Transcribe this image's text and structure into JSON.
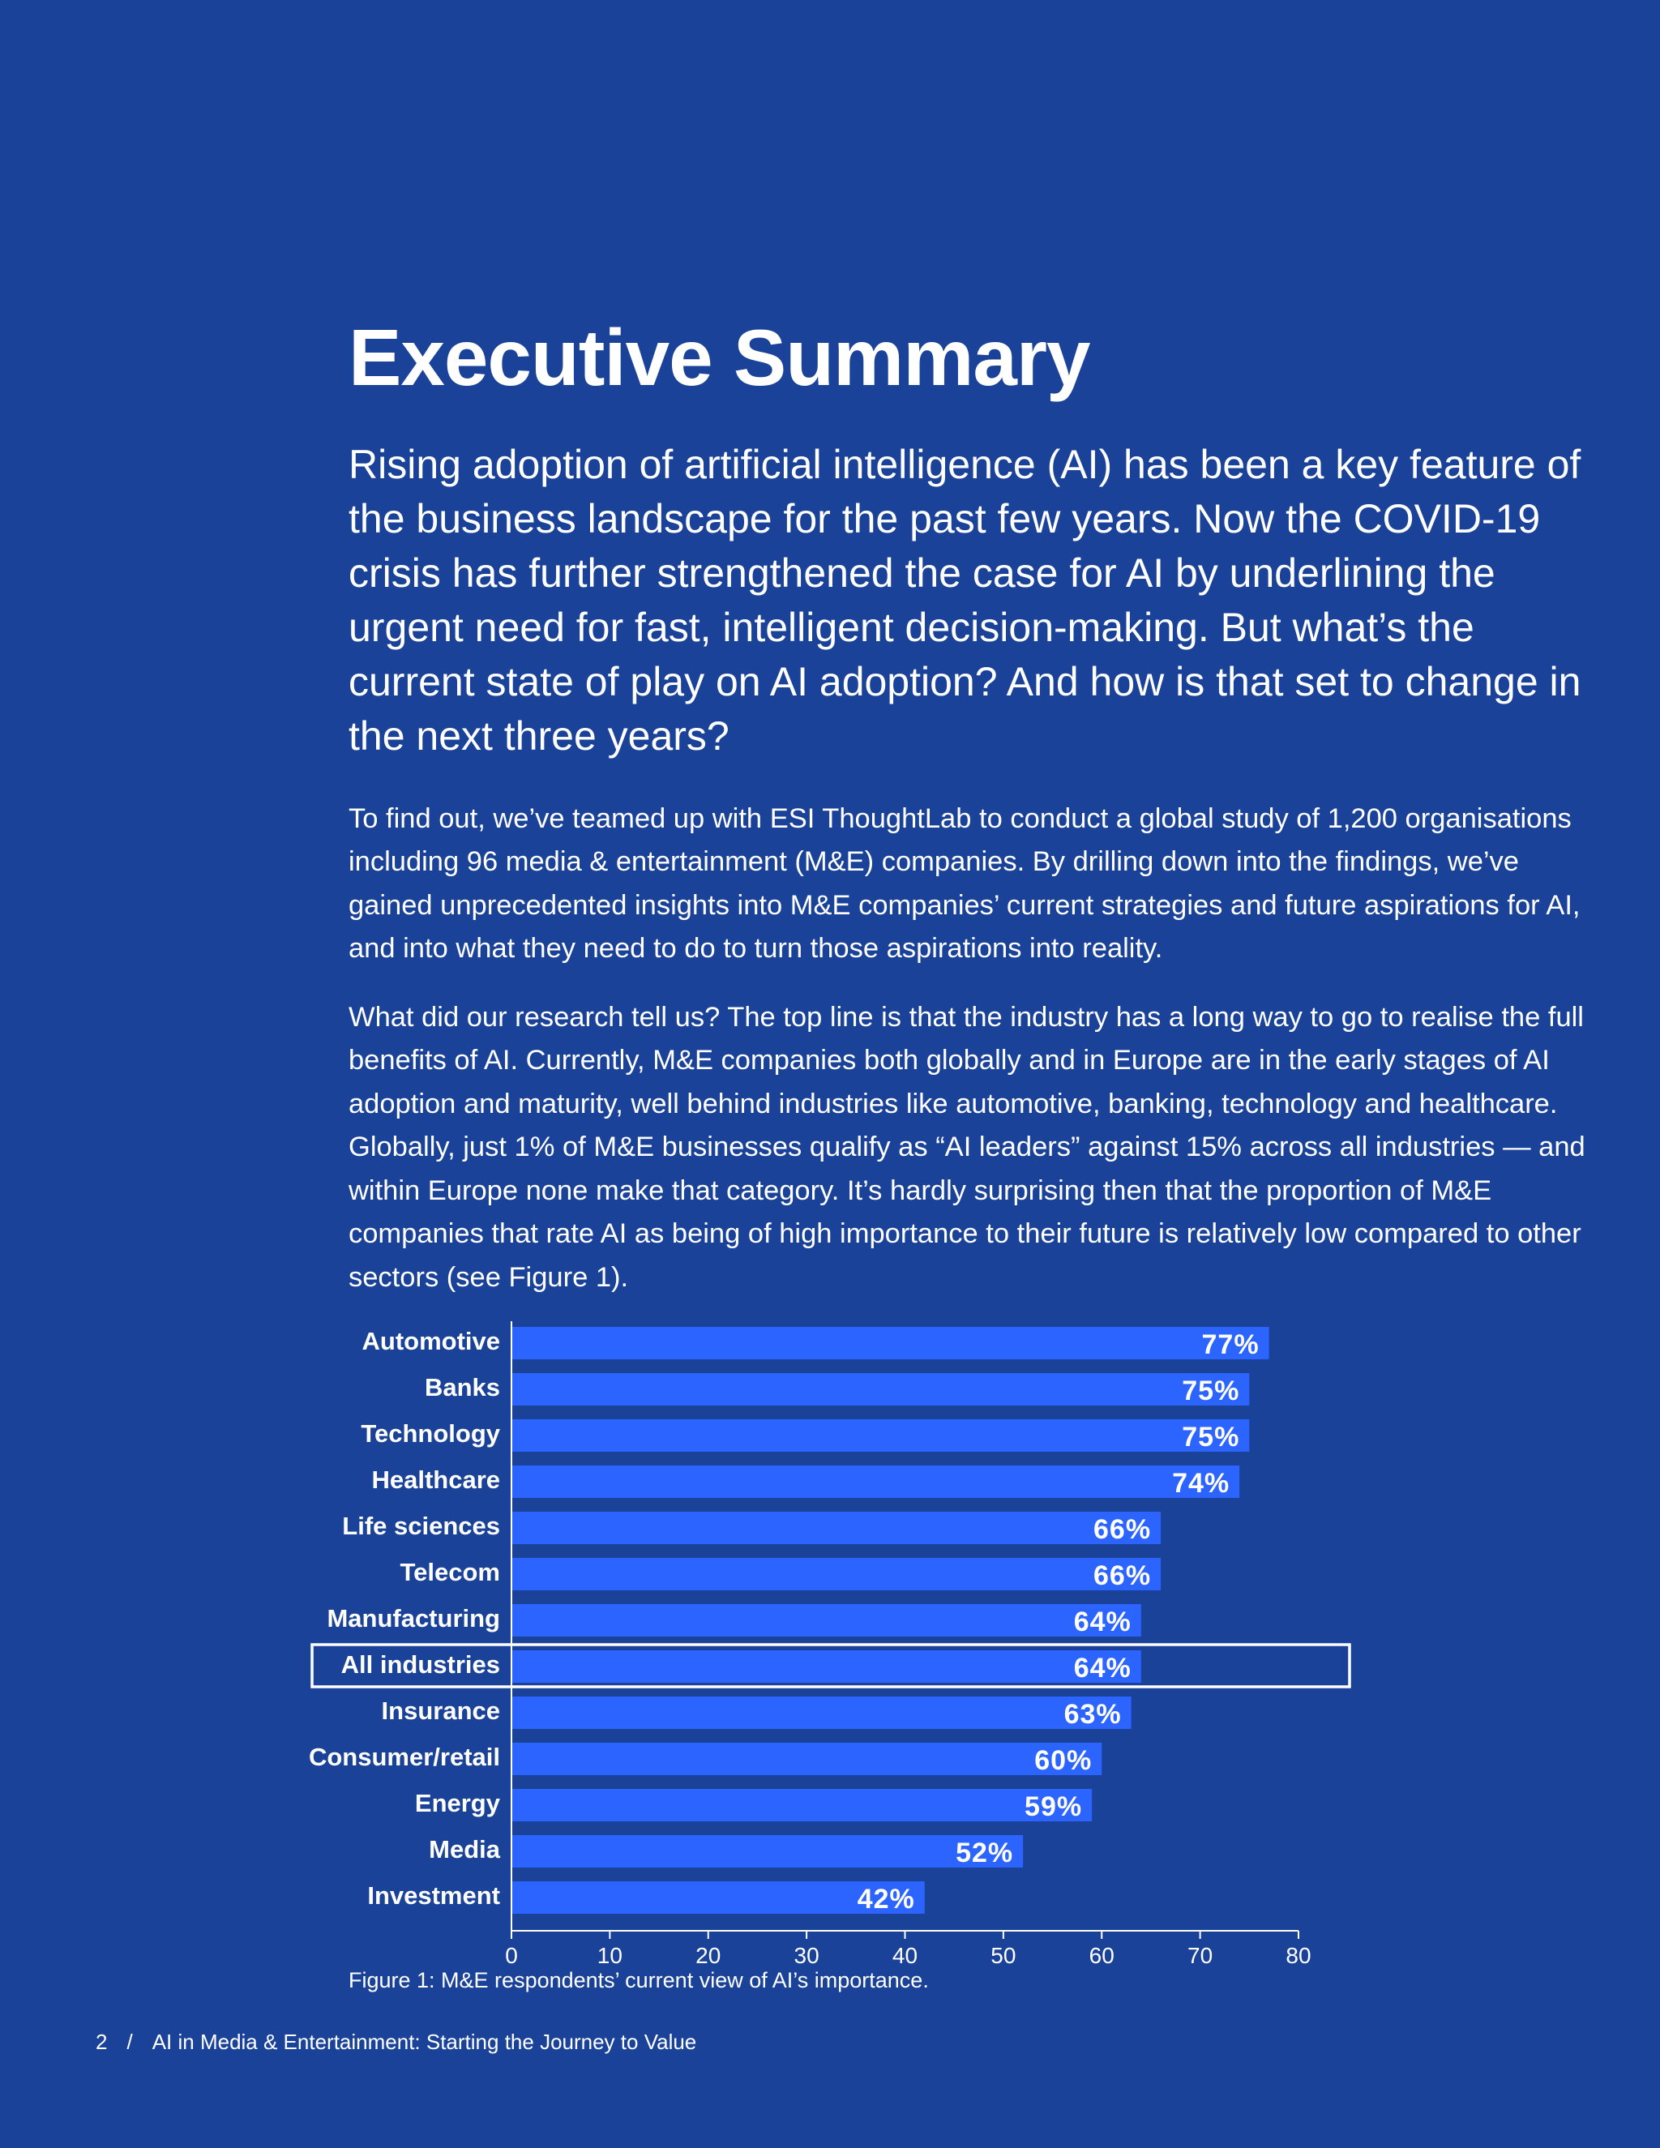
{
  "header": {
    "title": "Executive Summary",
    "lede": "Rising adoption of artificial intelligence (AI) has been a key feature of the business landscape for the past few years. Now the COVID-19 crisis has further strengthened the case for AI by underlining the urgent need for fast, intelligent decision-making. But what’s the current state of play on AI adoption? And how is that set to change in the next three years?"
  },
  "body": {
    "paragraph1": "To find out, we’ve teamed up with ESI ThoughtLab to conduct a global study of 1,200 organisations including 96 media & entertainment (M&E) companies. By drilling down into the findings, we’ve gained unprecedented insights into M&E companies’ current strategies and future aspirations for AI, and into what they need to do to turn those aspirations into reality.",
    "paragraph2": "What did our research tell us? The top line is that the industry has a long way to go to realise the full benefits of AI. Currently, M&E companies both globally and in Europe are in the early stages of AI adoption and maturity, well behind industries like automotive, banking, technology and healthcare. Globally, just 1% of M&E businesses qualify as “AI leaders” against 15% across all industries — and within Europe none make that category. It’s hardly surprising then that the proportion of M&E companies that rate AI as being of high importance to their future is relatively low compared to other sectors (see Figure 1)."
  },
  "chart_data": {
    "type": "bar",
    "orientation": "horizontal",
    "categories": [
      "Automotive",
      "Banks",
      "Technology",
      "Healthcare",
      "Life sciences",
      "Telecom",
      "Manufacturing",
      "All industries",
      "Insurance",
      "Consumer/retail",
      "Energy",
      "Media",
      "Investment"
    ],
    "values": [
      77,
      75,
      75,
      74,
      66,
      66,
      64,
      64,
      63,
      60,
      59,
      52,
      42
    ],
    "value_labels": [
      "77%",
      "75%",
      "75%",
      "74%",
      "66%",
      "66%",
      "64%",
      "64%",
      "63%",
      "60%",
      "59%",
      "52%",
      "42%"
    ],
    "highlighted_category": "All industries",
    "xlim": [
      0,
      80
    ],
    "xticks": [
      0,
      10,
      20,
      30,
      40,
      50,
      60,
      70,
      80
    ],
    "tick_labels": [
      "0",
      "10",
      "20",
      "30",
      "40",
      "50",
      "60",
      "70",
      "80"
    ],
    "title": "",
    "xlabel": "",
    "ylabel": "",
    "grid": false,
    "bar_color": "#2c64ff",
    "highlight_color": "#ffffff"
  },
  "caption": "Figure 1: M&E respondents’ current view of AI’s importance.",
  "footer": {
    "page_number": "2",
    "separator": "/",
    "publication": "AI in Media & Entertainment: Starting the Journey to Value"
  },
  "colors": {
    "background": "#1a4298",
    "text": "#ffffff"
  }
}
